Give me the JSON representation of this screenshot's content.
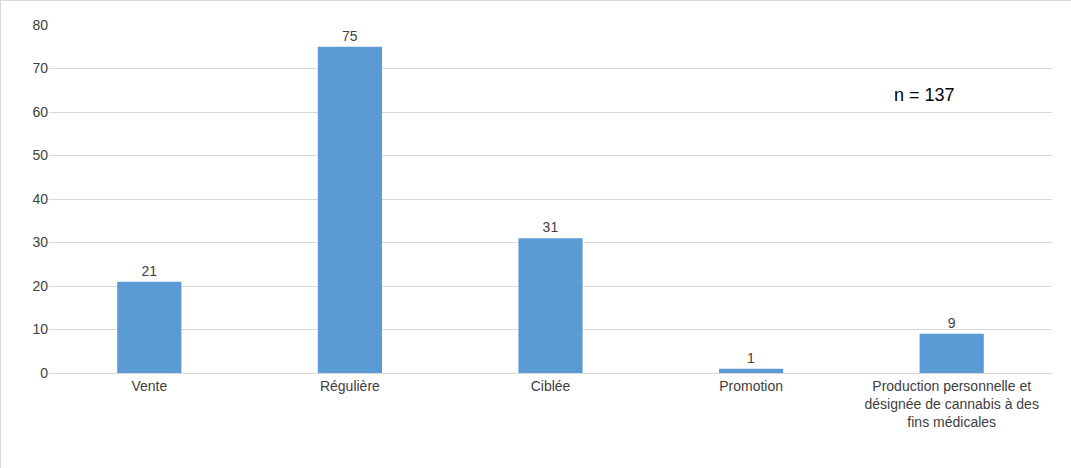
{
  "chart_data": {
    "type": "bar",
    "categories": [
      "Vente",
      "Régulière",
      "Ciblée",
      "Promotion",
      "Production personnelle et désignée de cannabis à des fins médicales"
    ],
    "values": [
      21,
      75,
      31,
      1,
      9
    ],
    "color": "#5b9bd5",
    "ylim": [
      0,
      80
    ],
    "yticks": [
      0,
      10,
      20,
      30,
      40,
      50,
      60,
      70,
      80
    ],
    "grid": true,
    "data_labels": true,
    "annotations": [
      {
        "text": "n = 137"
      }
    ]
  }
}
